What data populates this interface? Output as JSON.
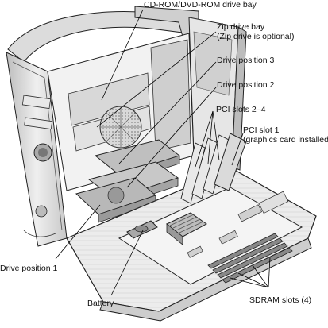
{
  "diagram": {
    "labels": {
      "cdrom_bay": "CD-ROM/DVD-ROM drive bay",
      "zip_bay_line1": "Zip drive bay",
      "zip_bay_line2": "(Zip drive is optional)",
      "drive_position_3": "Drive position 3",
      "drive_position_2": "Drive position 2",
      "pci_slots_2_4": "PCI slots 2–4",
      "pci_slot_1_line1": "PCI slot 1",
      "pci_slot_1_line2": "(graphics card installed)",
      "drive_position_1": "Drive position 1",
      "battery": "Battery",
      "sdram_slots": "SDRAM slots (4)"
    }
  }
}
